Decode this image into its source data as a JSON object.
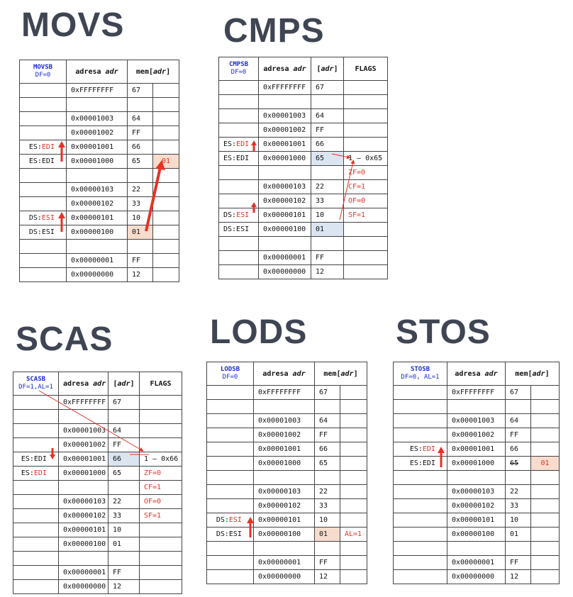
{
  "colors": {
    "title": "#3f4552",
    "mnemonic": "#1b2bd6",
    "highlight": "#e53225",
    "blue_cell": "#dbe5f1",
    "peach_cell": "#f7dccd"
  },
  "movs": {
    "title": "MOVS",
    "head": {
      "op": "MOVSB",
      "sub": "DF=0",
      "addr": "adresa ",
      "addr_i": "adr",
      "mem": "mem[",
      "mem_i": "adr",
      "mem_end": "]"
    },
    "rows": [
      {
        "reg": "",
        "addr": "0xFFFFFFFF",
        "val": "67",
        "extra": ""
      },
      {
        "reg": "",
        "addr": "",
        "val": "",
        "extra": ""
      },
      {
        "reg": "",
        "addr": "0x00001003",
        "val": "64",
        "extra": ""
      },
      {
        "reg": "",
        "addr": "0x00001002",
        "val": "FF",
        "extra": ""
      },
      {
        "reg": "ES:",
        "reg_red": "EDI",
        "addr": "0x00001001",
        "val": "66",
        "extra": ""
      },
      {
        "reg": "ES:EDI",
        "addr": "0x00001000",
        "val": "65",
        "extra": "01"
      },
      {
        "reg": "",
        "addr": "",
        "val": "",
        "extra": ""
      },
      {
        "reg": "",
        "addr": "0x00000103",
        "val": "22",
        "extra": ""
      },
      {
        "reg": "",
        "addr": "0x00000102",
        "val": "33",
        "extra": ""
      },
      {
        "reg": "DS:",
        "reg_red": "ESI",
        "addr": "0x00000101",
        "val": "10",
        "extra": ""
      },
      {
        "reg": "DS:ESI",
        "addr": "0x00000100",
        "val": "01",
        "extra": ""
      },
      {
        "reg": "",
        "addr": "",
        "val": "",
        "extra": ""
      },
      {
        "reg": "",
        "addr": "0x00000001",
        "val": "FF",
        "extra": ""
      },
      {
        "reg": "",
        "addr": "0x00000000",
        "val": "12",
        "extra": ""
      }
    ]
  },
  "cmps": {
    "title": "CMPS",
    "head": {
      "op": "CMPSB",
      "sub": "DF=0",
      "addr": "adresa ",
      "addr_i": "adr",
      "val_open": "[",
      "val_i": "adr",
      "val_close": "]",
      "flags": "FLAGS"
    },
    "rows": [
      {
        "reg": "",
        "addr": "0xFFFFFFFF",
        "val": "67",
        "flag": ""
      },
      {
        "reg": "",
        "addr": "",
        "val": "",
        "flag": ""
      },
      {
        "reg": "",
        "addr": "0x00001003",
        "val": "64",
        "flag": ""
      },
      {
        "reg": "",
        "addr": "0x00001002",
        "val": "FF",
        "flag": ""
      },
      {
        "reg": "ES:",
        "reg_red": "EDI",
        "addr": "0x00001001",
        "val": "66",
        "flag": ""
      },
      {
        "reg": "ES:EDI",
        "addr": "0x00001000",
        "val": "65",
        "flag": "1 – 0x65"
      },
      {
        "reg": "",
        "addr": "",
        "val": "",
        "flag": "ZF=0"
      },
      {
        "reg": "",
        "addr": "0x00000103",
        "val": "22",
        "flag": "CF=1"
      },
      {
        "reg": "",
        "addr": "0x00000102",
        "val": "33",
        "flag": "OF=0"
      },
      {
        "reg": "DS:",
        "reg_red": "ESI",
        "addr": "0x00000101",
        "val": "10",
        "flag": "SF=1"
      },
      {
        "reg": "DS:ESI",
        "addr": "0x00000100",
        "val": "01",
        "flag": ""
      },
      {
        "reg": "",
        "addr": "",
        "val": "",
        "flag": ""
      },
      {
        "reg": "",
        "addr": "0x00000001",
        "val": "FF",
        "flag": ""
      },
      {
        "reg": "",
        "addr": "0x00000000",
        "val": "12",
        "flag": ""
      }
    ]
  },
  "scas": {
    "title": "SCAS",
    "head": {
      "op": "SCASB",
      "sub": "DF=1,AL=1",
      "addr": "adresa ",
      "addr_i": "adr",
      "val_open": "[",
      "val_i": "adr",
      "val_close": "]",
      "flags": "FLAGS"
    },
    "rows": [
      {
        "reg": "",
        "addr": "0xFFFFFFFF",
        "val": "67",
        "flag": ""
      },
      {
        "reg": "",
        "addr": "",
        "val": "",
        "flag": ""
      },
      {
        "reg": "",
        "addr": "0x00001003",
        "val": "64",
        "flag": ""
      },
      {
        "reg": "",
        "addr": "0x00001002",
        "val": "FF",
        "flag": ""
      },
      {
        "reg": "ES:EDI",
        "addr": "0x00001001",
        "val": "66",
        "flag": "1 – 0x66"
      },
      {
        "reg": "ES:",
        "reg_red": "EDI",
        "addr": "0x00001000",
        "val": "65",
        "flag": "ZF=0"
      },
      {
        "reg": "",
        "addr": "",
        "val": "",
        "flag": "CF=1"
      },
      {
        "reg": "",
        "addr": "0x00000103",
        "val": "22",
        "flag": "OF=0"
      },
      {
        "reg": "",
        "addr": "0x00000102",
        "val": "33",
        "flag": "SF=1"
      },
      {
        "reg": "",
        "addr": "0x00000101",
        "val": "10",
        "flag": ""
      },
      {
        "reg": "",
        "addr": "0x00000100",
        "val": "01",
        "flag": ""
      },
      {
        "reg": "",
        "addr": "",
        "val": "",
        "flag": ""
      },
      {
        "reg": "",
        "addr": "0x00000001",
        "val": "FF",
        "flag": ""
      },
      {
        "reg": "",
        "addr": "0x00000000",
        "val": "12",
        "flag": ""
      }
    ]
  },
  "lods": {
    "title": "LODS",
    "head": {
      "op": "LODSB",
      "sub": "DF=0",
      "addr": "adresa ",
      "addr_i": "adr",
      "mem": "mem[",
      "mem_i": "adr",
      "mem_end": "]"
    },
    "rows": [
      {
        "reg": "",
        "addr": "0xFFFFFFFF",
        "val": "67",
        "extra": ""
      },
      {
        "reg": "",
        "addr": "",
        "val": "",
        "extra": ""
      },
      {
        "reg": "",
        "addr": "0x00001003",
        "val": "64",
        "extra": ""
      },
      {
        "reg": "",
        "addr": "0x00001002",
        "val": "FF",
        "extra": ""
      },
      {
        "reg": "",
        "addr": "0x00001001",
        "val": "66",
        "extra": ""
      },
      {
        "reg": "",
        "addr": "0x00001000",
        "val": "65",
        "extra": ""
      },
      {
        "reg": "",
        "addr": "",
        "val": "",
        "extra": ""
      },
      {
        "reg": "",
        "addr": "0x00000103",
        "val": "22",
        "extra": ""
      },
      {
        "reg": "",
        "addr": "0x00000102",
        "val": "33",
        "extra": ""
      },
      {
        "reg": "DS:",
        "reg_red": "ESI",
        "addr": "0x00000101",
        "val": "10",
        "extra": ""
      },
      {
        "reg": "DS:ESI",
        "addr": "0x00000100",
        "val": "01",
        "extra": "AL=1"
      },
      {
        "reg": "",
        "addr": "",
        "val": "",
        "extra": ""
      },
      {
        "reg": "",
        "addr": "0x00000001",
        "val": "FF",
        "extra": ""
      },
      {
        "reg": "",
        "addr": "0x00000000",
        "val": "12",
        "extra": ""
      }
    ]
  },
  "stos": {
    "title": "STOS",
    "head": {
      "op": "STOSB",
      "sub": "DF=0, AL=1",
      "addr": "adresa ",
      "addr_i": "adr",
      "mem": "mem[",
      "mem_i": "adr",
      "mem_end": "]"
    },
    "rows": [
      {
        "reg": "",
        "addr": "0xFFFFFFFF",
        "val": "67",
        "extra": ""
      },
      {
        "reg": "",
        "addr": "",
        "val": "",
        "extra": ""
      },
      {
        "reg": "",
        "addr": "0x00001003",
        "val": "64",
        "extra": ""
      },
      {
        "reg": "",
        "addr": "0x00001002",
        "val": "FF",
        "extra": ""
      },
      {
        "reg": "ES:",
        "reg_red": "EDI",
        "addr": "0x00001001",
        "val": "66",
        "extra": ""
      },
      {
        "reg": "ES:EDI",
        "addr": "0x00001000",
        "val": "65",
        "extra": "01"
      },
      {
        "reg": "",
        "addr": "",
        "val": "",
        "extra": ""
      },
      {
        "reg": "",
        "addr": "0x00000103",
        "val": "22",
        "extra": ""
      },
      {
        "reg": "",
        "addr": "0x00000102",
        "val": "33",
        "extra": ""
      },
      {
        "reg": "",
        "addr": "0x00000101",
        "val": "10",
        "extra": ""
      },
      {
        "reg": "",
        "addr": "0x00000100",
        "val": "01",
        "extra": ""
      },
      {
        "reg": "",
        "addr": "",
        "val": "",
        "extra": ""
      },
      {
        "reg": "",
        "addr": "0x00000001",
        "val": "FF",
        "extra": ""
      },
      {
        "reg": "",
        "addr": "0x00000000",
        "val": "12",
        "extra": ""
      }
    ]
  }
}
